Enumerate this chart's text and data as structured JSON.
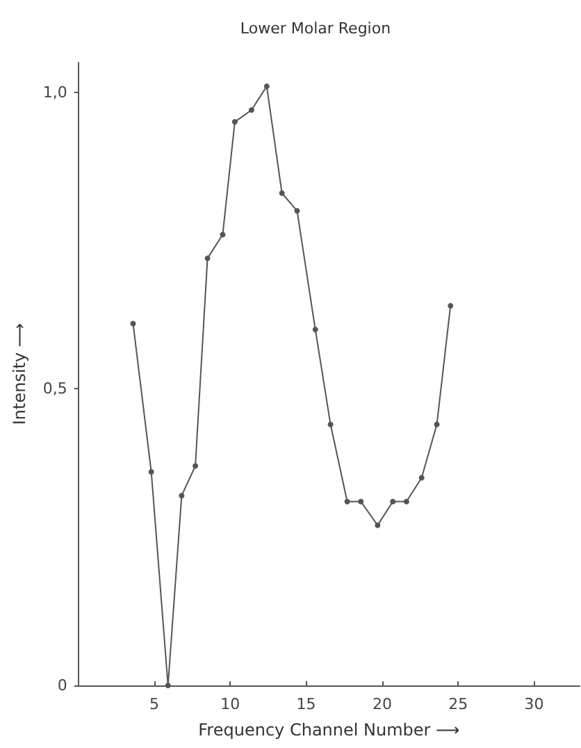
{
  "chart_data": {
    "type": "line",
    "title": "Lower Molar Region",
    "xlabel": "Frequency Channel Number ⟶",
    "ylabel": "Intensity ⟶",
    "x": [
      3.6,
      4.8,
      5.9,
      6.8,
      7.7,
      8.5,
      9.5,
      10.3,
      11.4,
      12.4,
      13.4,
      14.4,
      15.6,
      16.6,
      17.7,
      18.6,
      19.7,
      20.7,
      21.6,
      22.6,
      23.6,
      24.5
    ],
    "series": [
      {
        "color": "#555555",
        "values": [
          0.61,
          0.36,
          0,
          0.32,
          0.37,
          0.72,
          0.76,
          0.95,
          0.97,
          1.01,
          0.83,
          0.8,
          0.6,
          0.44,
          0.31,
          0.31,
          0.27,
          0.31,
          0.31,
          0.35,
          0.44,
          0.64
        ]
      }
    ],
    "xlim": [
      0,
      33
    ],
    "xticks": [
      5,
      10,
      15,
      20,
      25,
      30
    ],
    "ylim": [
      0,
      1.05
    ],
    "yticks": [
      0,
      {
        "value": 0.5,
        "label": "0,5"
      },
      {
        "value": 1,
        "label": "1,0"
      }
    ],
    "grid": false,
    "marker": "circle",
    "line_style": "solid"
  }
}
